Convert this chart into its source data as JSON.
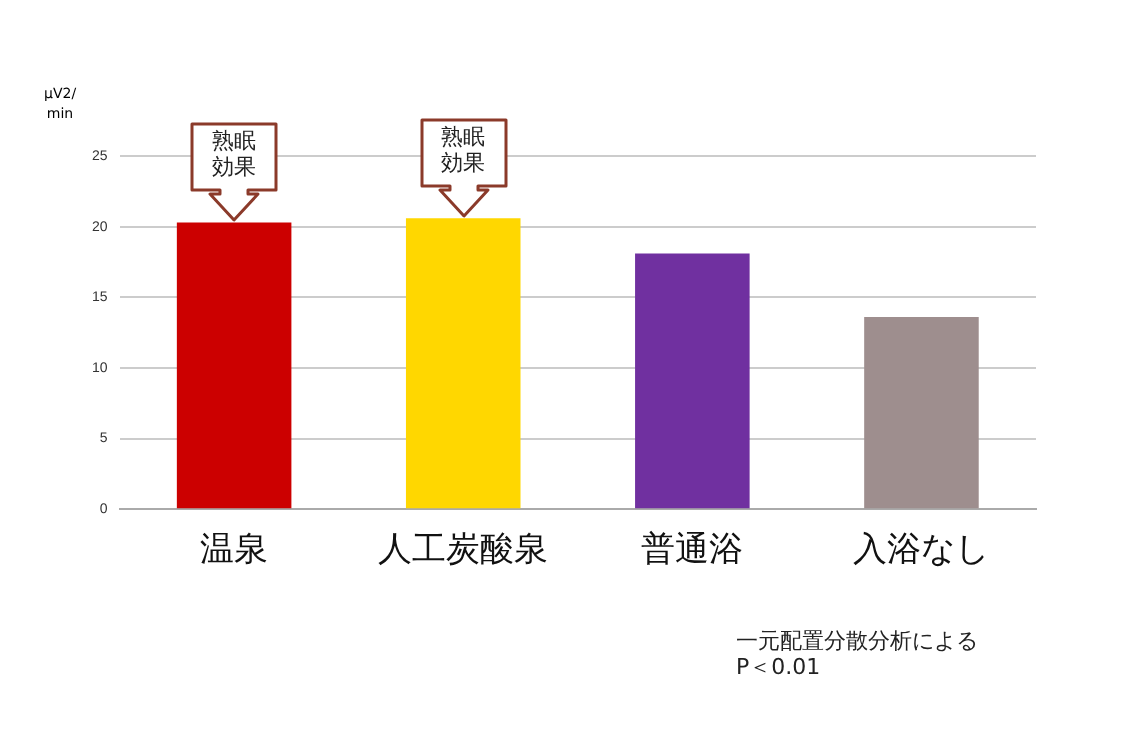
{
  "chart_data": {
    "type": "bar",
    "ylabel": "µV2/\nmin",
    "categories": [
      "温泉",
      "人工炭酸泉",
      "普通浴",
      "入浴なし"
    ],
    "values": [
      20.3,
      20.6,
      18.1,
      13.6
    ],
    "colors": [
      "#cc0000",
      "#ffd700",
      "#7030a0",
      "#9e8e8e"
    ],
    "ylim": [
      0,
      25
    ],
    "yticks": [
      0,
      5,
      10,
      15,
      20,
      25
    ],
    "grid": "y",
    "legend": false,
    "annotations": [
      {
        "text": "熟眠効果",
        "x": "温泉",
        "y": 20.3
      },
      {
        "text": "熟眠効果",
        "x": "人工炭酸泉",
        "y": 20.6
      },
      "一元配置分散分析による\nP＜0.01"
    ]
  }
}
